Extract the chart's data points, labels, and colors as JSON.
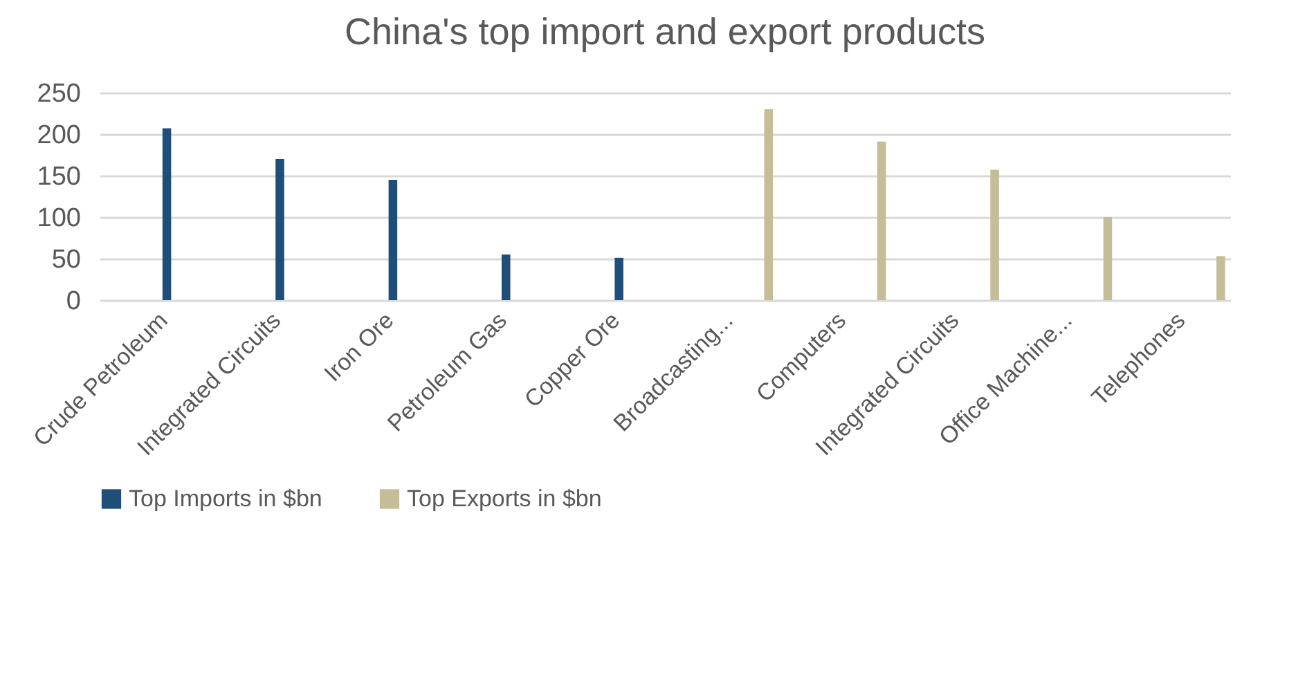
{
  "chart_data": {
    "type": "bar",
    "title": "China's top import and export products",
    "categories": [
      "Crude Petroleum",
      "Integrated Circuits",
      "Iron Ore",
      "Petroleum Gas",
      "Copper Ore",
      "Broadcasting...",
      "Computers",
      "Integrated Circuits",
      "Office Machine...",
      "Telephones"
    ],
    "series": [
      {
        "name": "Top Imports in $bn",
        "color": "#1f4e79",
        "values": [
          207,
          170,
          145,
          55,
          51,
          null,
          null,
          null,
          null,
          null
        ]
      },
      {
        "name": "Top Exports in $bn",
        "color": "#c4bd97",
        "values": [
          null,
          null,
          null,
          null,
          null,
          230,
          191,
          157,
          100,
          53
        ]
      }
    ],
    "ylim": [
      0,
      250
    ],
    "yticks": [
      0,
      50,
      100,
      150,
      200,
      250
    ],
    "grid": "y",
    "legend": "bottom"
  }
}
